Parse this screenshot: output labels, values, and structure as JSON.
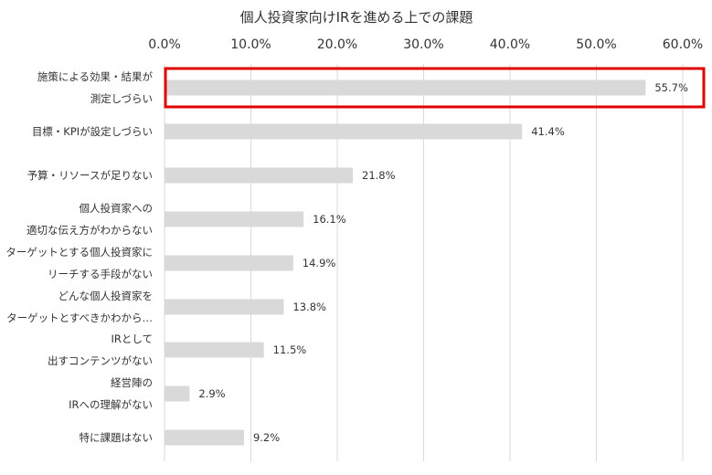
{
  "chart_data": {
    "type": "bar",
    "orientation": "horizontal",
    "title": "個人投資家向けIRを進める上での課題",
    "xlim": [
      0,
      60
    ],
    "x_ticks": [
      "0.0%",
      "10.0%",
      "20.0%",
      "30.0%",
      "40.0%",
      "50.0%",
      "60.0%"
    ],
    "x_tick_values": [
      0,
      10,
      20,
      30,
      40,
      50,
      60
    ],
    "axis_position": "top",
    "grid": true,
    "categories": [
      [
        "施策による効果・結果が",
        "測定しづらい"
      ],
      [
        "目標・KPIが設定しづらい"
      ],
      [
        "予算・リソースが足りない"
      ],
      [
        "個人投資家への",
        "適切な伝え方がわからない"
      ],
      [
        "ターゲットとする個人投資家に",
        "リーチする手段がない"
      ],
      [
        "どんな個人投資家を",
        "ターゲットとすべきかわから…"
      ],
      [
        "IRとして",
        "出すコンテンツがない"
      ],
      [
        "経営陣の",
        "IRへの理解がない"
      ],
      [
        "特に課題はない"
      ]
    ],
    "values": [
      55.7,
      41.4,
      21.8,
      16.1,
      14.9,
      13.8,
      11.5,
      2.9,
      9.2
    ],
    "value_labels": [
      "55.7%",
      "41.4%",
      "21.8%",
      "16.1%",
      "14.9%",
      "13.8%",
      "11.5%",
      "2.9%",
      "9.2%"
    ],
    "highlight_index": 0,
    "colors": {
      "bar": "#d9d9d9",
      "grid": "#d9d9d9",
      "highlight": "#e00000",
      "text": "#333333"
    }
  }
}
